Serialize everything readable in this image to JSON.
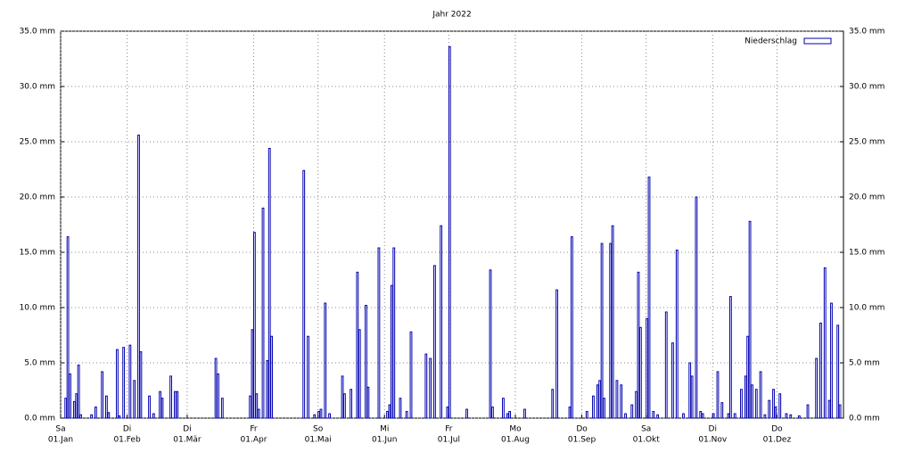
{
  "chart_data": {
    "type": "bar",
    "title": "Jahr 2022",
    "xlim": [
      0,
      365
    ],
    "xticks": [
      {
        "value": 0,
        "label": "01.Jan",
        "weekday": "Sa"
      },
      {
        "value": 31,
        "label": "01.Feb",
        "weekday": "Di"
      },
      {
        "value": 59,
        "label": "01.Mär",
        "weekday": "Di"
      },
      {
        "value": 90,
        "label": "01.Apr",
        "weekday": "Fr"
      },
      {
        "value": 120,
        "label": "01.Mai",
        "weekday": "So"
      },
      {
        "value": 151,
        "label": "01.Jun",
        "weekday": "Mi"
      },
      {
        "value": 181,
        "label": "01.Jul",
        "weekday": "Fr"
      },
      {
        "value": 212,
        "label": "01.Aug",
        "weekday": "Mo"
      },
      {
        "value": 243,
        "label": "01.Sep",
        "weekday": "Do"
      },
      {
        "value": 273,
        "label": "01.Okt",
        "weekday": "Sa"
      },
      {
        "value": 304,
        "label": "01.Nov",
        "weekday": "Di"
      },
      {
        "value": 334,
        "label": "01.Dez",
        "weekday": "Do"
      }
    ],
    "ylim": [
      0,
      35
    ],
    "yticks": [
      {
        "value": 0,
        "label": "0.0 mm"
      },
      {
        "value": 5,
        "label": "5.0 mm"
      },
      {
        "value": 10,
        "label": "10.0 mm"
      },
      {
        "value": 15,
        "label": "15.0 mm"
      },
      {
        "value": 20,
        "label": "20.0 mm"
      },
      {
        "value": 25,
        "label": "25.0 mm"
      },
      {
        "value": 30,
        "label": "30.0 mm"
      },
      {
        "value": 35,
        "label": "35.0 mm"
      }
    ],
    "grid": true,
    "legend": "upper right",
    "series": [
      {
        "name": "Niederschlag",
        "color": "#0000b0",
        "x": [
          2,
          3,
          4,
          6,
          7,
          8,
          9,
          14,
          16,
          19,
          21,
          22,
          26,
          27,
          29,
          32,
          34,
          36,
          37,
          41,
          43,
          46,
          47,
          51,
          53,
          54,
          72,
          73,
          75,
          88,
          89,
          90,
          91,
          92,
          94,
          96,
          97,
          98,
          113,
          115,
          118,
          120,
          121,
          123,
          125,
          131,
          132,
          135,
          138,
          139,
          142,
          143,
          148,
          152,
          153,
          154,
          155,
          158,
          161,
          163,
          170,
          172,
          174,
          177,
          180,
          181,
          189,
          200,
          201,
          206,
          208,
          209,
          216,
          229,
          231,
          237,
          238,
          245,
          248,
          250,
          251,
          252,
          253,
          256,
          257,
          259,
          261,
          263,
          266,
          268,
          269,
          270,
          273,
          274,
          276,
          278,
          282,
          285,
          287,
          290,
          293,
          294,
          296,
          298,
          299,
          304,
          306,
          308,
          311,
          312,
          314,
          317,
          319,
          320,
          321,
          322,
          324,
          326,
          328,
          330,
          332,
          333,
          335,
          338,
          340,
          344,
          348,
          352,
          354,
          356,
          358,
          359,
          362,
          363
        ],
        "values": [
          1.8,
          16.4,
          4.0,
          1.5,
          2.2,
          4.8,
          0.3,
          0.3,
          1.0,
          4.2,
          2.0,
          0.5,
          6.2,
          0.2,
          6.4,
          6.6,
          3.4,
          25.6,
          6.0,
          2.0,
          0.4,
          2.4,
          1.8,
          3.8,
          2.4,
          2.4,
          5.4,
          4.0,
          1.8,
          2.0,
          8.0,
          16.8,
          2.2,
          0.8,
          19.0,
          5.2,
          24.4,
          7.4,
          22.4,
          7.4,
          0.3,
          0.6,
          0.8,
          10.4,
          0.4,
          3.8,
          2.2,
          2.6,
          13.2,
          8.0,
          10.2,
          2.8,
          15.4,
          0.6,
          1.2,
          12.0,
          15.4,
          1.8,
          0.6,
          7.8,
          5.8,
          5.4,
          13.8,
          17.4,
          1.0,
          33.6,
          0.8,
          13.4,
          1.0,
          1.8,
          0.4,
          0.6,
          0.8,
          2.6,
          11.6,
          1.0,
          16.4,
          0.6,
          2.0,
          3.0,
          3.4,
          15.8,
          1.8,
          15.8,
          17.4,
          3.4,
          3.0,
          0.4,
          1.2,
          2.4,
          13.2,
          8.2,
          9.0,
          21.8,
          0.6,
          0.3,
          9.6,
          6.8,
          15.2,
          0.4,
          5.0,
          3.8,
          20.0,
          0.6,
          0.4,
          0.4,
          4.2,
          1.4,
          0.4,
          11.0,
          0.4,
          2.6,
          3.8,
          7.4,
          17.8,
          3.0,
          2.6,
          4.2,
          0.3,
          1.6,
          2.6,
          1.0,
          2.2,
          0.4,
          0.3,
          0.2,
          1.2,
          5.4,
          8.6,
          13.6,
          1.6,
          10.4,
          8.4,
          1.2
        ]
      }
    ]
  }
}
